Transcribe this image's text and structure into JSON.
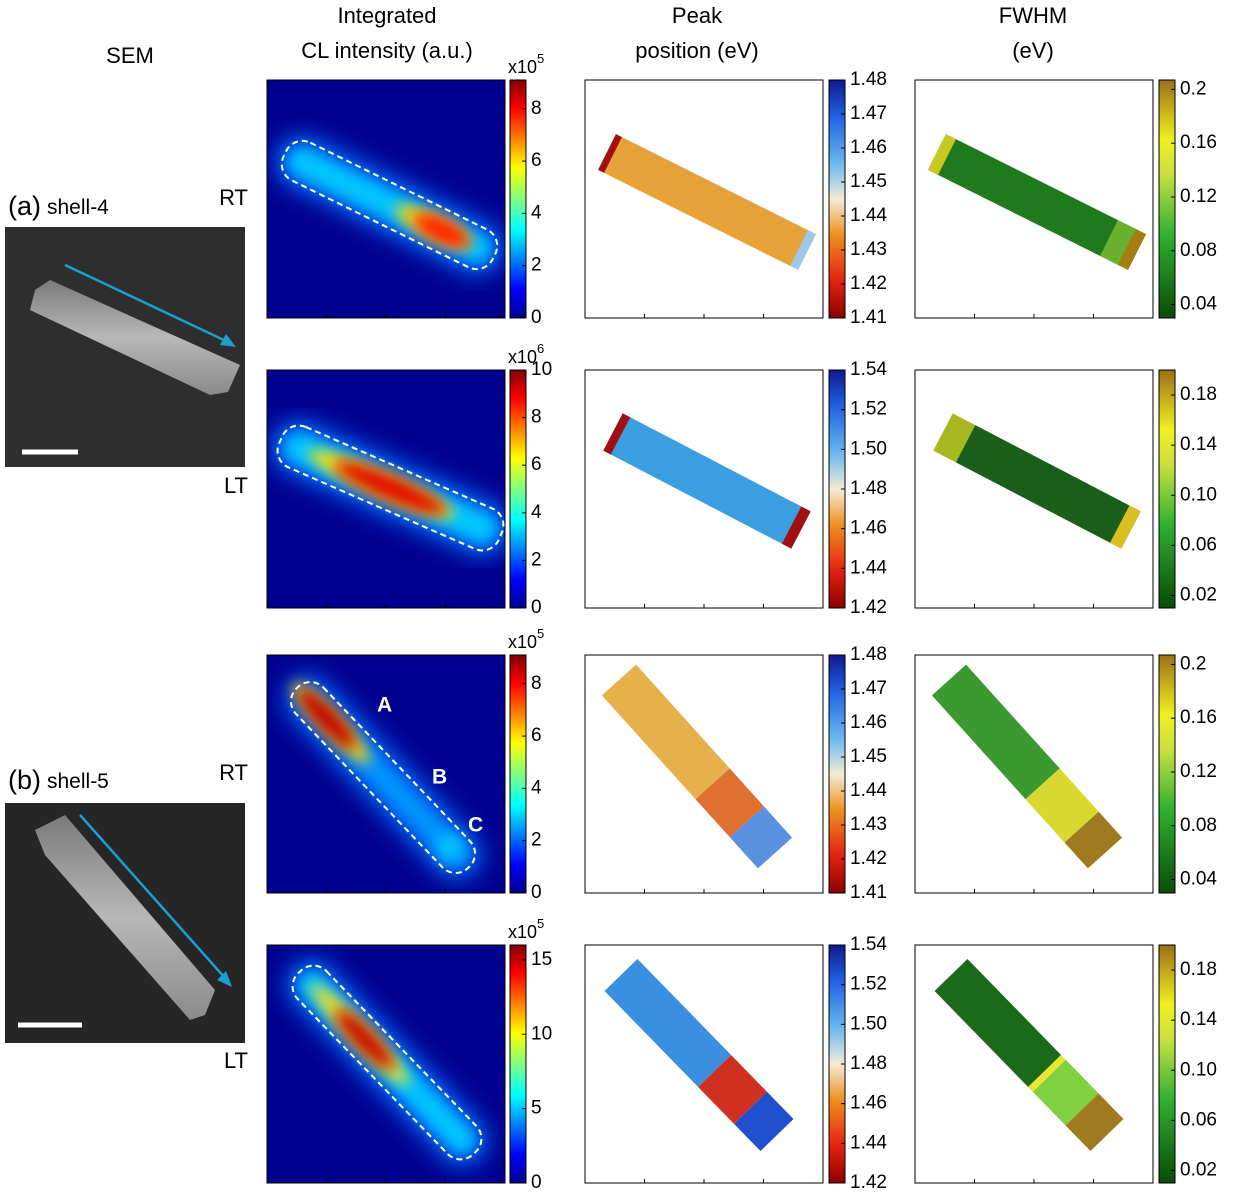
{
  "header": {
    "sem": "SEM",
    "cl": [
      "Integrated",
      "CL intensity (a.u.)"
    ],
    "peak": [
      "Peak",
      "position (eV)"
    ],
    "fwhm": [
      "FWHM",
      "(eV)"
    ]
  },
  "samples": [
    {
      "label": "(a)",
      "name": "shell-4"
    },
    {
      "label": "(b)",
      "name": "shell-5"
    }
  ],
  "annotations": [
    "A",
    "B",
    "C"
  ],
  "rows": [
    {
      "condition": "RT",
      "cl_colorbar": {
        "multiplier": "x10",
        "exponent": "5",
        "lim": [
          0,
          9.1
        ],
        "ticks": [
          0,
          2,
          4,
          6,
          8
        ]
      },
      "peak_colorbar": {
        "lim": [
          1.41,
          1.48
        ],
        "ticks": [
          1.41,
          1.42,
          1.43,
          1.44,
          1.45,
          1.46,
          1.47,
          1.48
        ]
      },
      "fwhm_colorbar": {
        "lim": [
          0.03,
          0.207
        ],
        "ticks": [
          0.04,
          0.08,
          0.12,
          0.16,
          0.2
        ]
      }
    },
    {
      "condition": "LT",
      "cl_colorbar": {
        "multiplier": "x10",
        "exponent": "6",
        "lim": [
          0,
          10
        ],
        "ticks": [
          0,
          2,
          4,
          6,
          8,
          10
        ]
      },
      "peak_colorbar": {
        "lim": [
          1.42,
          1.54
        ],
        "ticks": [
          1.42,
          1.44,
          1.46,
          1.48,
          {
            "value": 1.5,
            "label": "1.50"
          },
          1.52,
          1.54
        ]
      },
      "fwhm_colorbar": {
        "lim": [
          0.01,
          0.2
        ],
        "ticks": [
          0.02,
          0.06,
          {
            "value": 0.1,
            "label": "0.10"
          },
          0.14,
          0.18
        ]
      }
    },
    {
      "condition": "RT",
      "cl_colorbar": {
        "multiplier": "x10",
        "exponent": "5",
        "lim": [
          0,
          9.1
        ],
        "ticks": [
          0,
          2,
          4,
          6,
          8
        ]
      },
      "peak_colorbar": {
        "lim": [
          1.41,
          1.48
        ],
        "ticks": [
          1.41,
          1.42,
          1.43,
          1.44,
          1.45,
          1.46,
          1.47,
          1.48
        ]
      },
      "fwhm_colorbar": {
        "lim": [
          0.03,
          0.207
        ],
        "ticks": [
          0.04,
          0.08,
          0.12,
          0.16,
          0.2
        ]
      }
    },
    {
      "condition": "LT",
      "cl_colorbar": {
        "multiplier": "x10",
        "exponent": "5",
        "lim": [
          0,
          16
        ],
        "ticks": [
          0,
          5,
          10,
          15
        ]
      },
      "peak_colorbar": {
        "lim": [
          1.42,
          1.54
        ],
        "ticks": [
          1.42,
          1.44,
          1.46,
          1.48,
          {
            "value": 1.5,
            "label": "1.50"
          },
          1.52,
          1.54
        ]
      },
      "fwhm_colorbar": {
        "lim": [
          0.01,
          0.2
        ],
        "ticks": [
          0.02,
          0.06,
          {
            "value": 0.1,
            "label": "0.10"
          },
          0.14,
          0.18
        ]
      }
    }
  ]
}
